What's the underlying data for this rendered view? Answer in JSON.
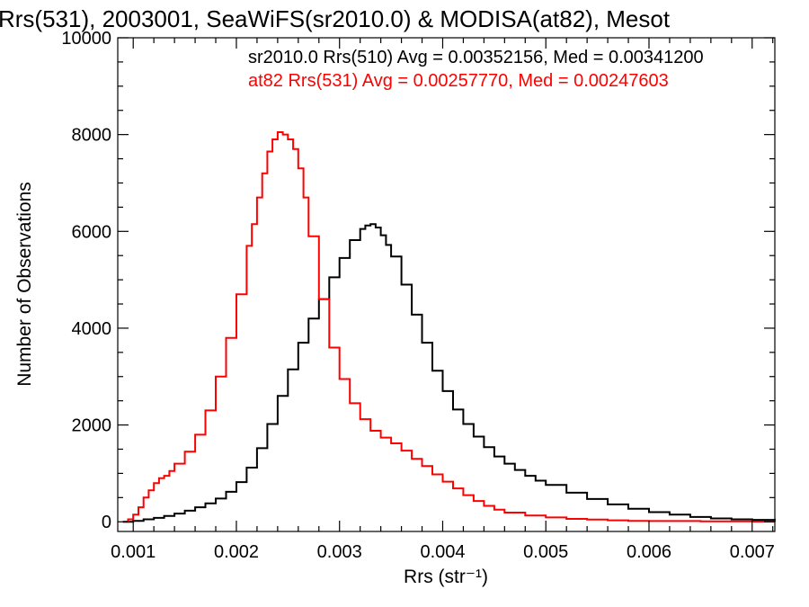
{
  "chart_data": {
    "type": "line",
    "title": "Rrs(531), 2003001, SeaWiFS(sr2010.0) & MODISA(at82), Mesot",
    "xlabel": "Rrs (str⁻¹)",
    "ylabel": "Number of Observations",
    "xlim": [
      0.00085,
      0.00722
    ],
    "ylim": [
      -200,
      10000
    ],
    "x_ticks": [
      0.001,
      0.002,
      0.003,
      0.004,
      0.005,
      0.006,
      0.007
    ],
    "x_tick_labels": [
      "0.001",
      "0.002",
      "0.003",
      "0.004",
      "0.005",
      "0.006",
      "0.007"
    ],
    "y_ticks": [
      0,
      2000,
      4000,
      6000,
      8000,
      10000
    ],
    "y_tick_labels": [
      "0",
      "2000",
      "4000",
      "6000",
      "8000",
      "10000"
    ],
    "grid": false,
    "annotations": [
      {
        "text": "sr2010.0 Rrs(510) Avg = 0.00352156, Med = 0.00341200",
        "color": "#000000"
      },
      {
        "text": "at82 Rrs(531) Avg = 0.00257770, Med = 0.00247603",
        "color": "#ff0000"
      }
    ],
    "series": [
      {
        "color": "#000000",
        "x": [
          0.0009,
          0.001,
          0.0011,
          0.0012,
          0.0013,
          0.0014,
          0.0015,
          0.0016,
          0.0017,
          0.0018,
          0.0019,
          0.002,
          0.0021,
          0.0022,
          0.0023,
          0.0024,
          0.0025,
          0.0026,
          0.0027,
          0.0028,
          0.0029,
          0.003,
          0.0031,
          0.0032,
          0.00325,
          0.0033,
          0.00335,
          0.0034,
          0.00345,
          0.0035,
          0.0036,
          0.0037,
          0.0038,
          0.0039,
          0.004,
          0.0041,
          0.0042,
          0.0043,
          0.0044,
          0.0045,
          0.0046,
          0.0047,
          0.0048,
          0.0049,
          0.005,
          0.0052,
          0.0054,
          0.0056,
          0.0058,
          0.006,
          0.0062,
          0.0064,
          0.0066,
          0.0068,
          0.007,
          0.00722
        ],
        "y": [
          0,
          20,
          50,
          80,
          120,
          170,
          230,
          300,
          380,
          480,
          620,
          820,
          1120,
          1520,
          2020,
          2600,
          3150,
          3700,
          4200,
          4600,
          5050,
          5450,
          5820,
          6050,
          6120,
          6150,
          6080,
          5920,
          5720,
          5480,
          4900,
          4280,
          3700,
          3120,
          2700,
          2320,
          2020,
          1760,
          1540,
          1350,
          1200,
          1070,
          950,
          850,
          760,
          600,
          470,
          360,
          270,
          200,
          150,
          100,
          70,
          50,
          40,
          30
        ]
      },
      {
        "color": "#ff0000",
        "x": [
          0.0009,
          0.00095,
          0.001,
          0.00105,
          0.0011,
          0.00115,
          0.0012,
          0.00125,
          0.0013,
          0.00135,
          0.0014,
          0.0015,
          0.0016,
          0.0017,
          0.0018,
          0.0019,
          0.002,
          0.0021,
          0.00215,
          0.0022,
          0.00225,
          0.0023,
          0.00235,
          0.0024,
          0.00245,
          0.0025,
          0.00255,
          0.0026,
          0.00265,
          0.0027,
          0.0028,
          0.0029,
          0.003,
          0.0031,
          0.0032,
          0.0033,
          0.0034,
          0.0035,
          0.0036,
          0.0037,
          0.0038,
          0.0039,
          0.004,
          0.0041,
          0.0042,
          0.0043,
          0.0044,
          0.0045,
          0.0046,
          0.0048,
          0.005,
          0.0052,
          0.0054,
          0.0056,
          0.0058,
          0.006,
          0.0065,
          0.007,
          0.00722
        ],
        "y": [
          0,
          50,
          150,
          300,
          500,
          650,
          800,
          900,
          950,
          1050,
          1200,
          1450,
          1800,
          2300,
          3000,
          3800,
          4700,
          5700,
          6150,
          6700,
          7200,
          7650,
          7900,
          8050,
          8000,
          7900,
          7700,
          7300,
          6700,
          5900,
          4600,
          3600,
          2950,
          2450,
          2120,
          1880,
          1740,
          1620,
          1470,
          1300,
          1150,
          980,
          830,
          690,
          550,
          430,
          330,
          250,
          190,
          130,
          90,
          60,
          45,
          30,
          20,
          15,
          10,
          5,
          3
        ]
      }
    ]
  }
}
